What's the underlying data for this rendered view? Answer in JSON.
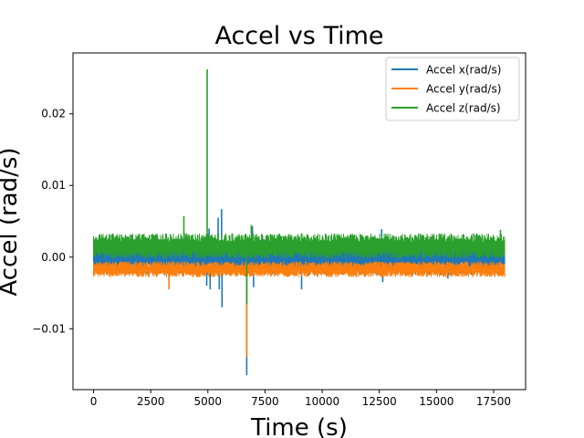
{
  "chart_data": {
    "type": "line",
    "title": "Accel vs Time",
    "xlabel": "Time (s)",
    "ylabel": "Accel (rad/s)",
    "xlim": [
      -900,
      18900
    ],
    "ylim": [
      -0.0185,
      0.0285
    ],
    "xticks": [
      0,
      2500,
      5000,
      7500,
      10000,
      12500,
      15000,
      17500
    ],
    "xtick_labels": [
      "0",
      "2500",
      "5000",
      "7500",
      "10000",
      "12500",
      "15000",
      "17500"
    ],
    "yticks": [
      -0.01,
      0.0,
      0.01,
      0.02
    ],
    "ytick_labels": [
      "−0.01",
      "0.00",
      "0.01",
      "0.02"
    ],
    "grid": false,
    "legend_position": "top-right",
    "x_range": [
      0,
      18000
    ],
    "series": [
      {
        "name": "Accel x(rad/s)",
        "color": "#1f77b4",
        "band": [
          -0.0025,
          0.0025
        ],
        "spikes": [
          {
            "x": 3300,
            "y": -0.0035
          },
          {
            "x": 4950,
            "y": -0.004
          },
          {
            "x": 5050,
            "y": 0.004
          },
          {
            "x": 5100,
            "y": -0.0045
          },
          {
            "x": 5450,
            "y": 0.0055
          },
          {
            "x": 5500,
            "y": -0.0045
          },
          {
            "x": 5600,
            "y": 0.0067
          },
          {
            "x": 5620,
            "y": -0.007
          },
          {
            "x": 6700,
            "y": -0.0165
          },
          {
            "x": 6950,
            "y": 0.0043
          },
          {
            "x": 7000,
            "y": -0.0042
          },
          {
            "x": 9100,
            "y": -0.0045
          },
          {
            "x": 12600,
            "y": 0.0039
          },
          {
            "x": 12650,
            "y": -0.0035
          },
          {
            "x": 15500,
            "y": -0.003
          }
        ]
      },
      {
        "name": "Accel y(rad/s)",
        "color": "#ff7f0e",
        "band": [
          -0.0028,
          -0.0006
        ],
        "spikes": [
          {
            "x": 3300,
            "y": -0.0045
          },
          {
            "x": 6700,
            "y": -0.014
          }
        ]
      },
      {
        "name": "Accel z(rad/s)",
        "color": "#2ca02c",
        "band": [
          -0.0002,
          0.0033
        ],
        "spikes": [
          {
            "x": 3950,
            "y": 0.0057
          },
          {
            "x": 4970,
            "y": 0.0262
          },
          {
            "x": 6700,
            "y": -0.0065
          },
          {
            "x": 6900,
            "y": 0.0045
          },
          {
            "x": 17800,
            "y": 0.0038
          }
        ]
      }
    ]
  }
}
